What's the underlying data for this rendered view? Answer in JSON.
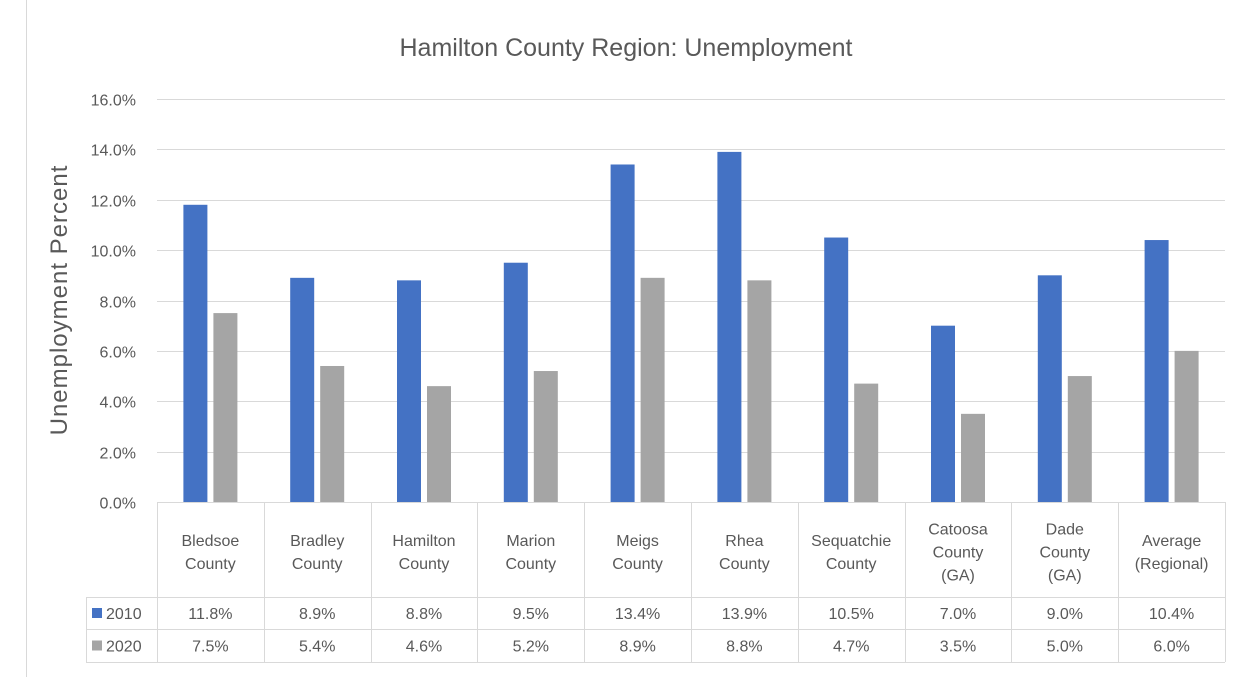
{
  "chart_data": {
    "type": "bar",
    "title": "Hamilton County Region: Unemployment",
    "xlabel": "",
    "ylabel": "Unemployment Percent",
    "ylim": [
      0,
      16
    ],
    "yticks": [
      "0.0%",
      "2.0%",
      "4.0%",
      "6.0%",
      "8.0%",
      "10.0%",
      "12.0%",
      "14.0%",
      "16.0%"
    ],
    "grid": true,
    "legend": "data-table",
    "categories": [
      [
        "Bledsoe",
        "County"
      ],
      [
        "Bradley",
        "County"
      ],
      [
        "Hamilton",
        "County"
      ],
      [
        "Marion",
        "County"
      ],
      [
        "Meigs",
        "County"
      ],
      [
        "Rhea",
        "County"
      ],
      [
        "Sequatchie",
        "County"
      ],
      [
        "Catoosa",
        "County",
        "(GA)"
      ],
      [
        "Dade",
        "County",
        "(GA)"
      ],
      [
        "Average",
        "(Regional)"
      ]
    ],
    "series": [
      {
        "name": "2010",
        "color": "#4472C4",
        "values": [
          11.8,
          8.9,
          8.8,
          9.5,
          13.4,
          13.9,
          10.5,
          7.0,
          9.0,
          10.4
        ],
        "labels": [
          "11.8%",
          "8.9%",
          "8.8%",
          "9.5%",
          "13.4%",
          "13.9%",
          "10.5%",
          "7.0%",
          "9.0%",
          "10.4%"
        ]
      },
      {
        "name": "2020",
        "color": "#A5A5A5",
        "values": [
          7.5,
          5.4,
          4.6,
          5.2,
          8.9,
          8.8,
          4.7,
          3.5,
          5.0,
          6.0
        ],
        "labels": [
          "7.5%",
          "5.4%",
          "4.6%",
          "5.2%",
          "8.9%",
          "8.8%",
          "4.7%",
          "3.5%",
          "5.0%",
          "6.0%"
        ]
      }
    ]
  }
}
